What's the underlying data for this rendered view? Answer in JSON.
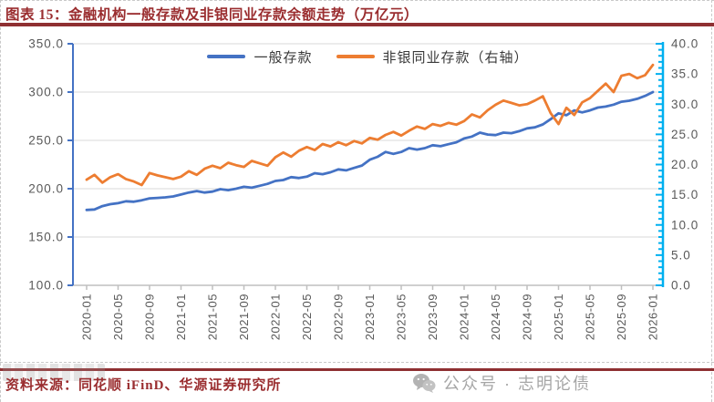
{
  "title": "图表 15：金融机构一般存款及非银同业存款余额走势（万亿元）",
  "footer": {
    "source": "资料来源：同花顺 iFinD、华源证券研究所",
    "wechat_label": "公众号 · 志明论债",
    "wechat_icon": "wechat-logo"
  },
  "colors": {
    "title_red": "#9a2d2f",
    "rule_red": "#8f3032",
    "series_blue": "#4472C4",
    "series_orange": "#ED7D31",
    "right_axis_cyan": "#00B0F0",
    "axis_label_gray": "#595959",
    "gridline_gray": "#d9d9d9",
    "xaxis_gray": "#bfbfbf"
  },
  "chart_data": {
    "type": "line",
    "title": "金融机构一般存款及非银同业存款余额走势（万亿元）",
    "grid": "horizontal",
    "legend_position": "top-center",
    "frequency": "monthly",
    "x_start": "2020-01",
    "x_end": "2026-01",
    "x_tick_labels": [
      "2020-01",
      "2020-05",
      "2020-09",
      "2021-01",
      "2021-05",
      "2021-09",
      "2022-01",
      "2022-05",
      "2022-09",
      "2023-01",
      "2023-05",
      "2023-09",
      "2024-01",
      "2024-05",
      "2024-09",
      "2025-01",
      "2025-05",
      "2025-09",
      "2026-01"
    ],
    "left_axis": {
      "min": 100,
      "max": 350,
      "ticks": [
        "350.0",
        "300.0",
        "250.0",
        "200.0",
        "150.0",
        "100.0"
      ]
    },
    "right_axis": {
      "min": 0,
      "max": 40,
      "ticks": [
        "40.0",
        "35.0",
        "30.0",
        "25.0",
        "20.0",
        "15.0",
        "10.0",
        "5.0",
        "0.0"
      ]
    },
    "series": [
      {
        "name": "一般存款",
        "axis": "left",
        "color": "#4472C4",
        "values": [
          178,
          178.5,
          182,
          184,
          185,
          187,
          186.5,
          188,
          190,
          190.5,
          191,
          192,
          194,
          196,
          197.5,
          196,
          197,
          199.5,
          198.5,
          200,
          202,
          201,
          203,
          205,
          208,
          209,
          212,
          211,
          212.5,
          216,
          215,
          217,
          220,
          219,
          221.5,
          224,
          230,
          233,
          238,
          236,
          238,
          242,
          240.5,
          242,
          245,
          244,
          246,
          248,
          252,
          254,
          258,
          256,
          255.5,
          258,
          257.5,
          259.5,
          262.5,
          263.5,
          266.5,
          272,
          278,
          276,
          281,
          279,
          281,
          284,
          285,
          287,
          290,
          291,
          293,
          296,
          300
        ]
      },
      {
        "name": "非银同业存款（右轴）",
        "axis": "right",
        "color": "#ED7D31",
        "values": [
          17.5,
          18.3,
          17.0,
          17.9,
          18.4,
          17.6,
          17.2,
          16.6,
          18.6,
          18.2,
          17.9,
          17.6,
          18.0,
          18.9,
          18.3,
          19.3,
          19.8,
          19.4,
          20.3,
          19.9,
          19.6,
          20.6,
          20.2,
          19.8,
          21.2,
          22.0,
          21.3,
          22.3,
          22.9,
          22.4,
          23.4,
          23.0,
          23.7,
          23.2,
          23.9,
          23.5,
          24.4,
          24.1,
          24.9,
          25.4,
          24.8,
          25.6,
          26.3,
          25.9,
          26.7,
          26.4,
          26.9,
          26.6,
          27.2,
          28.3,
          27.8,
          29.0,
          29.9,
          30.6,
          30.2,
          29.8,
          30.0,
          30.6,
          31.3,
          28.5,
          26.7,
          29.4,
          28.2,
          30.3,
          31.0,
          32.2,
          33.4,
          32.0,
          34.7,
          35.0,
          34.3,
          34.8,
          36.5
        ]
      }
    ]
  }
}
